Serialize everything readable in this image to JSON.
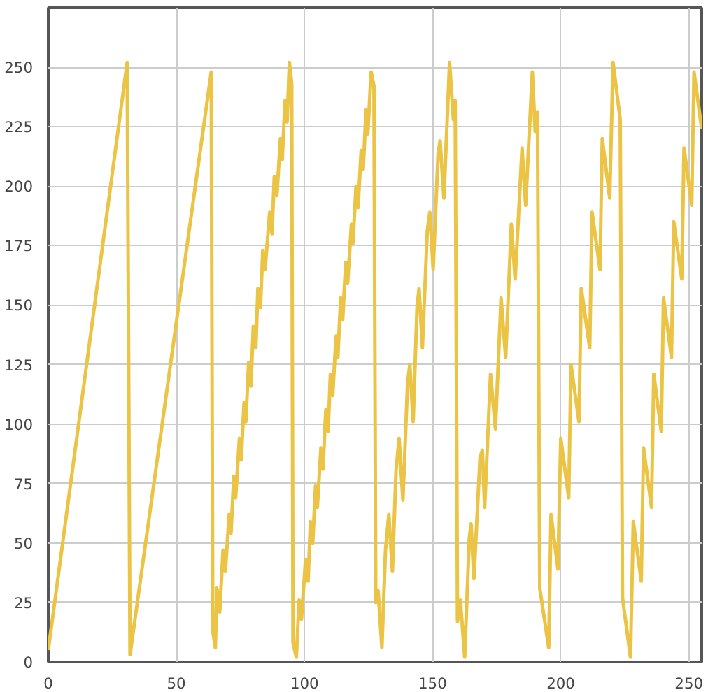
{
  "chart_data": {
    "type": "line",
    "xlim": [
      0,
      255
    ],
    "ylim": [
      0,
      275
    ],
    "xticks": [
      0,
      50,
      100,
      150,
      200,
      250
    ],
    "yticks": [
      0,
      25,
      50,
      75,
      100,
      125,
      150,
      175,
      200,
      225,
      250
    ],
    "grid": true,
    "marker": "none",
    "line_style": "solid",
    "series": [
      {
        "color": "#ecc445",
        "x": [
          0,
          30.8,
          31.9,
          63.6,
          64.2,
          65.2,
          65.8,
          66.9,
          68.2,
          69.1,
          70.6,
          71.3,
          72.4,
          73.1,
          74.6,
          75.3,
          76.4,
          77.1,
          78.2,
          79.1,
          80.0,
          81.0,
          81.8,
          82.8,
          83.7,
          84.6,
          86.4,
          87.3,
          88.2,
          89.2,
          90.6,
          91.3,
          92.4,
          93.2,
          94.1,
          95.0,
          95.5,
          96.8,
          97.9,
          98.8,
          100.4,
          101.4,
          102.3,
          103.2,
          104.3,
          105.0,
          106.4,
          107.2,
          108.3,
          109.2,
          110.1,
          111.0,
          112.3,
          113.0,
          114.1,
          114.9,
          116.1,
          116.8,
          118.3,
          118.9,
          120.1,
          120.9,
          122.1,
          122.9,
          124.0,
          124.7,
          126.0,
          127.1,
          127.8,
          128.7,
          130.2,
          131.6,
          132.9,
          134.3,
          135.7,
          136.9,
          138.4,
          140.2,
          141.1,
          142.4,
          143.9,
          144.7,
          146.0,
          147.9,
          148.9,
          150.2,
          152.1,
          152.9,
          154.4,
          156.6,
          158.1,
          158.8,
          159.7,
          160.8,
          162.5,
          164.3,
          165.0,
          166.1,
          168.5,
          169.4,
          170.3,
          172.6,
          174.5,
          176.7,
          178.5,
          180.7,
          182.2,
          184.9,
          186.3,
          188.9,
          190.0,
          190.9,
          191.8,
          195.3,
          196.2,
          198.9,
          200.0,
          203.1,
          204.0,
          207.1,
          208.0,
          211.3,
          212.2,
          215.3,
          216.2,
          219.1,
          220.4,
          223.2,
          224.1,
          227.2,
          228.3,
          231.4,
          232.3,
          235.4,
          236.3,
          239.2,
          240.1,
          243.2,
          244.1,
          247.2,
          248.1,
          251.1,
          252.0,
          255
        ],
        "values": [
          5,
          252,
          3,
          248,
          13,
          6,
          31,
          21,
          47,
          38,
          62,
          54,
          78,
          69,
          94,
          85,
          109,
          101,
          126,
          116,
          141,
          132,
          157,
          149,
          173,
          165,
          189,
          180,
          204,
          196,
          220,
          211,
          236,
          227,
          252,
          243,
          8,
          2,
          26,
          18,
          43,
          34,
          59,
          50,
          74,
          65,
          90,
          81,
          106,
          97,
          121,
          112,
          137,
          128,
          153,
          144,
          168,
          159,
          184,
          176,
          200,
          191,
          215,
          207,
          232,
          222,
          248,
          242,
          25,
          30,
          6,
          47,
          62,
          38,
          80,
          94,
          68,
          117,
          125,
          101,
          149,
          157,
          132,
          181,
          189,
          165,
          213,
          219,
          195,
          252,
          228,
          236,
          17,
          26,
          2,
          52,
          58,
          35,
          86,
          89,
          65,
          121,
          98,
          153,
          128,
          184,
          161,
          216,
          192,
          248,
          223,
          231,
          31,
          6,
          62,
          39,
          94,
          69,
          125,
          101,
          157,
          132,
          189,
          165,
          220,
          195,
          252,
          228,
          27,
          2,
          59,
          34,
          90,
          65,
          121,
          97,
          153,
          128,
          185,
          161,
          216,
          192,
          248,
          224
        ]
      }
    ]
  }
}
